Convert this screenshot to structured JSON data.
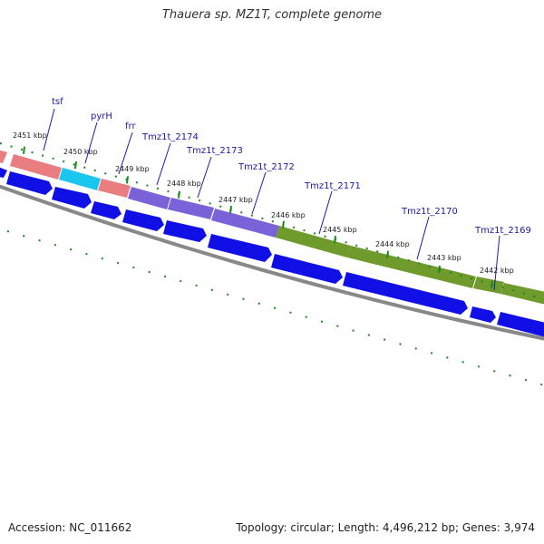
{
  "title": "Thauera sp. MZ1T, complete genome",
  "footer": {
    "accession": "Accession: NC_011662",
    "summary": "Topology: circular; Length: 4,496,212 bp; Genes: 3,974"
  },
  "colors": {
    "background": "#ffffff",
    "red_gene": "#e97d80",
    "cyan_gene": "#19c7ee",
    "purple_gene": "#7a62d8",
    "green_gene": "#6f9a2c",
    "cds": "#1010e6",
    "backbone": "#888888",
    "ticks": "#1b8a1b",
    "label": "#1a1aa6"
  },
  "kbp_labels": [
    "2451 kbp",
    "2450 kbp",
    "2449 kbp",
    "2448 kbp",
    "2447 kbp",
    "2446 kbp",
    "2445 kbp",
    "2444 kbp",
    "2443 kbp",
    "2442 kbp"
  ],
  "gene_labels": [
    "tsf",
    "pyrH",
    "frr",
    "Tmz1t_2174",
    "Tmz1t_2173",
    "Tmz1t_2172",
    "Tmz1t_2171",
    "Tmz1t_2170",
    "Tmz1t_2169"
  ]
}
